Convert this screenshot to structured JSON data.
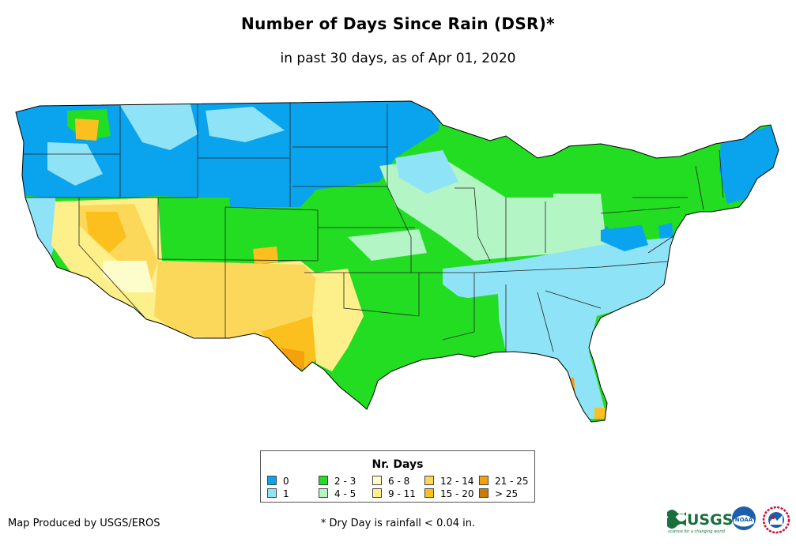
{
  "title": "Number of Days Since Rain (DSR)*",
  "subtitle": "in past 30 days, as of Apr 01, 2020",
  "legend": {
    "title": "Nr. Days",
    "items": [
      {
        "label": "0",
        "color": "#0aa3ee"
      },
      {
        "label": "1",
        "color": "#8fe3f7"
      },
      {
        "label": "2 - 3",
        "color": "#22dd22"
      },
      {
        "label": "4 - 5",
        "color": "#b3f5c5"
      },
      {
        "label": "6 - 8",
        "color": "#fdfccb"
      },
      {
        "label": "9 - 11",
        "color": "#fdf08a"
      },
      {
        "label": "12 - 14",
        "color": "#fcd85a"
      },
      {
        "label": "15 - 20",
        "color": "#fbbf1e"
      },
      {
        "label": "21 - 25",
        "color": "#f3a10c"
      },
      {
        "label": "> 25",
        "color": "#cf7a06"
      }
    ]
  },
  "footer": {
    "credit": "Map Produced by USGS/EROS",
    "footnote": "* Dry Day is rainfall < 0.04 in."
  },
  "logos": {
    "usgs_text": "USGS",
    "usgs_tagline": "science for a changing world",
    "noaa_text": "NOAA"
  }
}
